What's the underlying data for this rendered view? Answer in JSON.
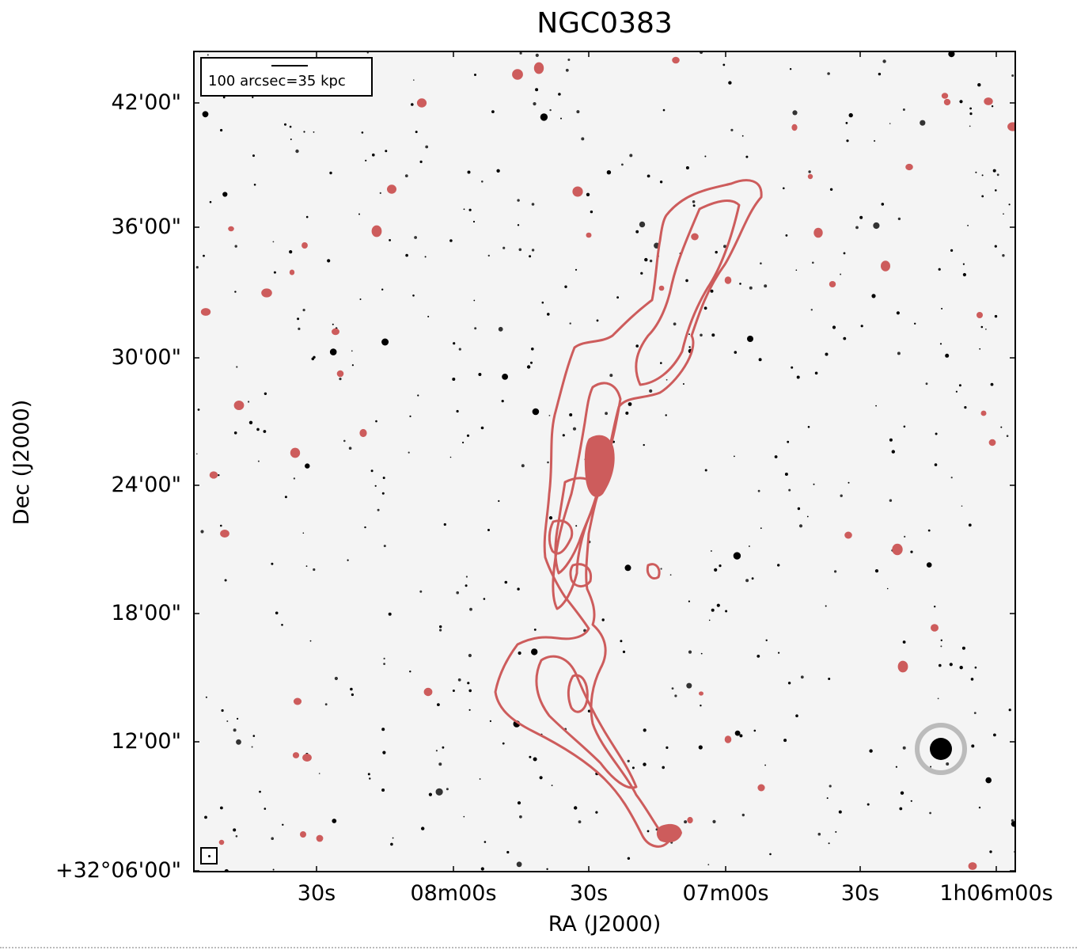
{
  "figure": {
    "title": "NGC0383",
    "xlabel": "RA (J2000)",
    "ylabel": "Dec (J2000)",
    "y_ticks": [
      "42'00\"",
      "36'00\"",
      "30'00\"",
      "24'00\"",
      "18'00\"",
      "12'00\"",
      "+32°06'00\""
    ],
    "x_ticks": [
      "30s",
      "08m00s",
      "30s",
      "07m00s",
      "30s",
      "1h06m00s"
    ],
    "scale_bar_label": "100 arcsec=35 kpc",
    "contour_color": "#cd5c5c",
    "background_color": "#f4f4f4"
  }
}
